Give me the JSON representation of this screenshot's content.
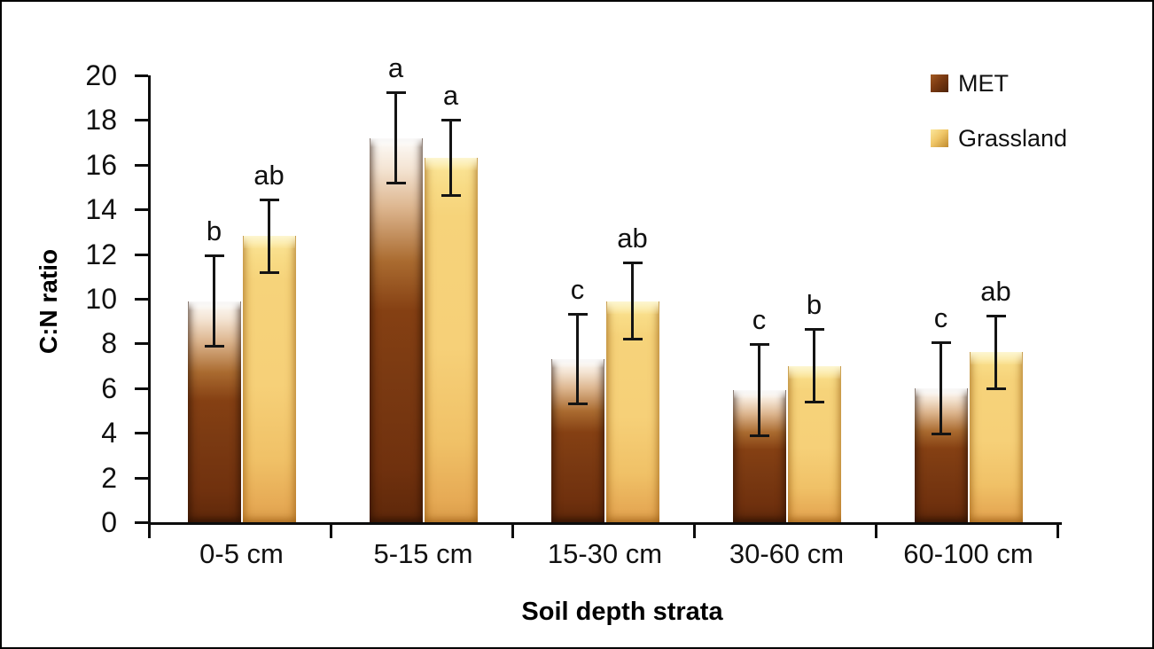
{
  "chart_data": {
    "type": "bar",
    "title": "",
    "xlabel": "Soil depth strata",
    "ylabel": "C:N ratio",
    "ylim": [
      0,
      20
    ],
    "ytick_step": 2,
    "grid": false,
    "legend_position": "upper-right",
    "categories": [
      "0-5 cm",
      "5-15 cm",
      "15-30 cm",
      "30-60 cm",
      "60-100 cm"
    ],
    "series": [
      {
        "name": "MET",
        "color": "#7b3a12",
        "values": [
          9.9,
          17.2,
          7.3,
          5.9,
          6.0
        ],
        "errors": [
          2.1,
          2.1,
          2.05,
          2.1,
          2.1
        ],
        "sig_letters": [
          "b",
          "a",
          "c",
          "c",
          "c"
        ]
      },
      {
        "name": "Grassland",
        "color": "#f4cf75",
        "values": [
          12.8,
          16.3,
          9.9,
          7.0,
          7.6
        ],
        "errors": [
          1.7,
          1.75,
          1.75,
          1.7,
          1.7
        ],
        "sig_letters": [
          "ab",
          "a",
          "ab",
          "b",
          "ab"
        ]
      }
    ]
  }
}
